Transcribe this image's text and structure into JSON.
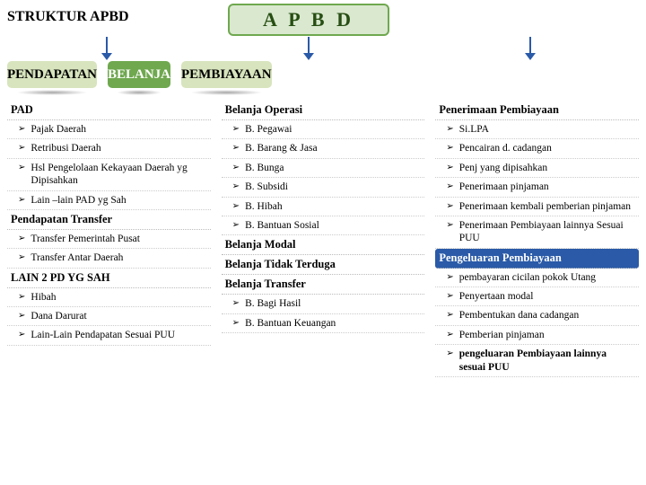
{
  "page_title": "STRUKTUR APBD",
  "root_box": {
    "label": "A P B D",
    "bg": "#d9e8cf",
    "border": "#6fa84f",
    "text_color": "#274e13"
  },
  "arrows": {
    "color": "#2a5aa8"
  },
  "headers": [
    {
      "label": "PENDAPATAN",
      "bg": "#d7e4bd",
      "text_color": "#000000"
    },
    {
      "label": "BELANJA",
      "bg": "#6fa84f",
      "text_color": "#ffffff"
    },
    {
      "label": "PEMBIAYAAN",
      "bg": "#d7e4bd",
      "text_color": "#000000"
    }
  ],
  "columns": [
    {
      "sections": [
        {
          "title": "PAD",
          "items": [
            {
              "text": "Pajak Daerah"
            },
            {
              "text": "Retribusi Daerah"
            },
            {
              "text": "Hsl Pengelolaan Kekayaan Daerah yg Dipisahkan"
            },
            {
              "text": "Lain –lain PAD yg Sah"
            }
          ]
        },
        {
          "title": "Pendapatan Transfer",
          "items": [
            {
              "text": "Transfer Pemerintah Pusat"
            },
            {
              "text": "Transfer Antar Daerah"
            }
          ]
        },
        {
          "title": "LAIN 2 PD YG SAH",
          "items": [
            {
              "text": "Hibah"
            },
            {
              "text": "Dana Darurat"
            },
            {
              "text": "Lain-Lain Pendapatan Sesuai PUU"
            }
          ]
        }
      ]
    },
    {
      "sections": [
        {
          "title": "Belanja Operasi",
          "items": [
            {
              "text": "B. Pegawai"
            },
            {
              "text": "B. Barang & Jasa"
            },
            {
              "text": "B. Bunga"
            },
            {
              "text": "B. Subsidi"
            },
            {
              "text": "B. Hibah"
            },
            {
              "text": "B. Bantuan Sosial"
            }
          ]
        },
        {
          "title": "Belanja Modal",
          "items": []
        },
        {
          "title": "Belanja Tidak Terduga",
          "items": []
        },
        {
          "title": "Belanja Transfer",
          "items": [
            {
              "text": "B. Bagi Hasil"
            },
            {
              "text": "B. Bantuan Keuangan"
            }
          ]
        }
      ]
    },
    {
      "sections": [
        {
          "title": "Penerimaan Pembiayaan",
          "items": [
            {
              "text": "Si.LPA"
            },
            {
              "text": "Pencairan d. cadangan"
            },
            {
              "text": "Penj yang dipisahkan"
            },
            {
              "text": "Penerimaan pinjaman"
            },
            {
              "text": "Penerimaan kembali pemberian pinjaman"
            },
            {
              "text": "Penerimaan Pembiayaan lainnya Sesuai PUU"
            }
          ]
        },
        {
          "title": "Pengeluaran Pembiayaan",
          "inverse": true,
          "items": [
            {
              "text": "pembayaran cicilan pokok Utang"
            },
            {
              "text": "Penyertaan modal"
            },
            {
              "text": "Pembentukan dana cadangan"
            },
            {
              "text": "Pemberian pinjaman"
            },
            {
              "text": "pengeluaran Pembiayaan lainnya sesuai PUU",
              "bold": true
            }
          ]
        }
      ]
    }
  ],
  "bullet_glyph": "➢",
  "style": {
    "page_bg": "#ffffff",
    "body_font": "Times New Roman",
    "divider_color": "#cccccc"
  }
}
